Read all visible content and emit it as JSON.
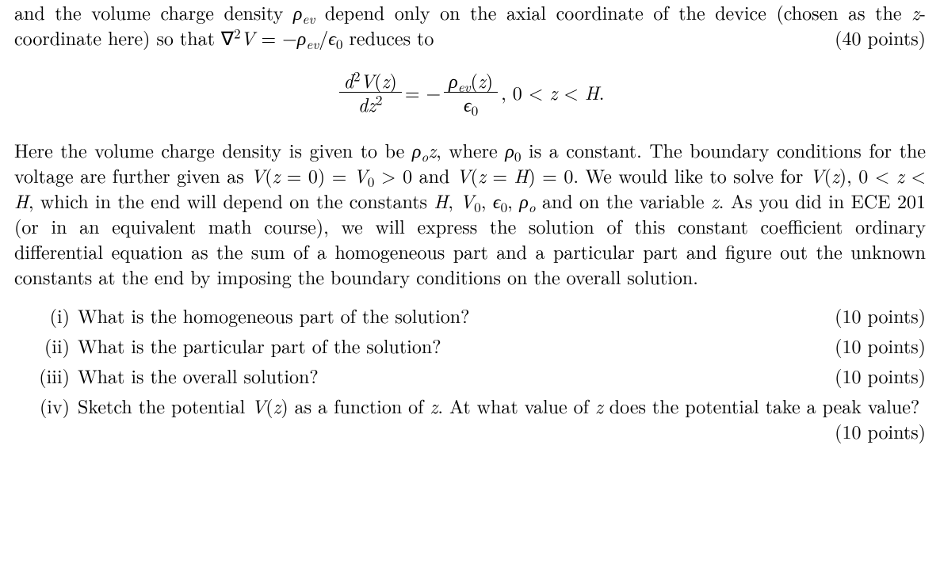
{
  "intro": {
    "before": "and the volume charge density ",
    "rho_ev": "ρ",
    "rho_ev_sub": "ev",
    "mid": " depend only on the axial coordinate of the device (chosen as the ",
    "z_coord": "z",
    "after_z": "-coordinate here) so that ∇",
    "sq": "2",
    "V": "V",
    "eq": " = −",
    "rho2": "ρ",
    "rho2_sub": "ev",
    "slash": "/",
    "eps": "ϵ",
    "eps_sub": "0",
    "reduces": " reduces to",
    "points": "(40 points)"
  },
  "equation": {
    "num_left_d": "d",
    "num_left_sq": "2",
    "num_left_V": "V",
    "num_left_open": "(",
    "num_left_z": "z",
    "num_left_close": ")",
    "den_left_d": "d",
    "den_left_z": "z",
    "den_left_sq": "2",
    "equals": " = −",
    "num_right_rho": "ρ",
    "num_right_sub": "ev",
    "num_right_open": "(",
    "num_right_z": "z",
    "num_right_close": ")",
    "den_right_eps": "ϵ",
    "den_right_sub": "0",
    "comma": ",   0 < ",
    "z": "z",
    "lt": " < ",
    "H": "H",
    "period": "."
  },
  "body": {
    "s1": "Here the volume charge density is given to be ",
    "rho0": "ρ",
    "rho0_sub": "o",
    "z": "z",
    "s2": ", where ",
    "rho1": "ρ",
    "rho1_sub": "0",
    "s3": " is a constant. The boundary conditions for the voltage are further given as ",
    "V1": "V",
    "open1": "(",
    "z1": "z",
    "eq0": " = 0) = ",
    "V0": "V",
    "V0_sub": "0",
    "gt0": " > 0 and ",
    "V2": "V",
    "open2": "(",
    "z2": "z",
    "eqH": " = ",
    "H1": "H",
    "close2": ") = 0.",
    "s4": " We would like to solve for ",
    "V3": "V",
    "open3": "(",
    "z3": "z",
    "close3": "), 0 < ",
    "z4": "z",
    "ltH": " < ",
    "H2": "H",
    "s5": ", which in the end will depend on the constants ",
    "H3": "H",
    "c1": ", ",
    "V4": "V",
    "V4_sub": "0",
    "c2": ", ",
    "eps": "ϵ",
    "eps_sub": "0",
    "c3": ", ",
    "rho2": "ρ",
    "rho2_sub": "o",
    "s6": " and on the variable ",
    "z5": "z",
    "s7": ". As you did in ECE 201 (or in an equivalent math course), we will express the solution of this constant coefficient ordinary differential equation as the sum of a homogeneous part and a particular part and figure out the unknown constants at the end by imposing the boundary conditions on the overall solution."
  },
  "q1": {
    "label": "(i)",
    "text": "What is the homogeneous part of the solution?",
    "points": "(10 points)"
  },
  "q2": {
    "label": "(ii)",
    "text": "What is the particular part of the solution?",
    "points": "(10 points)"
  },
  "q3": {
    "label": "(iii)",
    "text": "What is the overall solution?",
    "points": "(10 points)"
  },
  "q4": {
    "label": "(iv)",
    "text_before": "Sketch the potential ",
    "V": "V",
    "open": "(",
    "z": "z",
    "close": ") as a function of ",
    "z2": "z",
    "mid": ". At what value of ",
    "z3": "z",
    "after": " does the potential take a peak value?",
    "points": "(10 points)"
  }
}
